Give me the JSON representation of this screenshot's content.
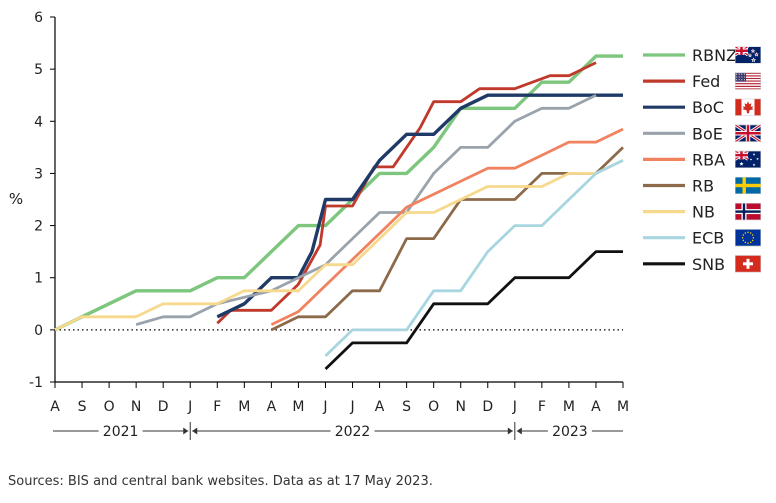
{
  "chart_data": {
    "type": "line",
    "ylabel": "%",
    "ylim": [
      -1,
      6
    ],
    "yticks": [
      "6",
      "5",
      "4",
      "3",
      "2",
      "1",
      "0",
      "-1"
    ],
    "ytick_values": [
      6,
      5,
      4,
      3,
      2,
      1,
      0,
      -1
    ],
    "months": [
      "A",
      "S",
      "O",
      "N",
      "D",
      "J",
      "F",
      "M",
      "A",
      "M",
      "J",
      "J",
      "A",
      "S",
      "O",
      "N",
      "D",
      "J",
      "F",
      "M",
      "A",
      "M"
    ],
    "years": [
      {
        "label": "2021",
        "from": 0,
        "to": 5
      },
      {
        "label": "2022",
        "from": 5,
        "to": 17
      },
      {
        "label": "2023",
        "from": 17,
        "to": 21
      }
    ],
    "series": [
      {
        "name": "RBNZ",
        "color": "#7dc67d",
        "width": 3.4,
        "points": [
          [
            0,
            0
          ],
          [
            1,
            0.25
          ],
          [
            3,
            0.75
          ],
          [
            5,
            0.75
          ],
          [
            6,
            1
          ],
          [
            7,
            1
          ],
          [
            9,
            2
          ],
          [
            10,
            2
          ],
          [
            11,
            2.5
          ],
          [
            12,
            3
          ],
          [
            13,
            3
          ],
          [
            14,
            3.5
          ],
          [
            15,
            4.25
          ],
          [
            16,
            4.25
          ],
          [
            17,
            4.25
          ],
          [
            18,
            4.75
          ],
          [
            19,
            4.75
          ],
          [
            20,
            5.25
          ],
          [
            21,
            5.25
          ]
        ]
      },
      {
        "name": "Fed",
        "color": "#c0392b",
        "width": 2.8,
        "points": [
          [
            6,
            0.125
          ],
          [
            6.5,
            0.375
          ],
          [
            8,
            0.375
          ],
          [
            9,
            0.875
          ],
          [
            9.8,
            1.625
          ],
          [
            10,
            2.375
          ],
          [
            11,
            2.375
          ],
          [
            11.8,
            3.125
          ],
          [
            12.5,
            3.125
          ],
          [
            13.5,
            3.875
          ],
          [
            14,
            4.375
          ],
          [
            15,
            4.375
          ],
          [
            15.7,
            4.625
          ],
          [
            17,
            4.625
          ],
          [
            18.3,
            4.875
          ],
          [
            19,
            4.875
          ],
          [
            20,
            5.125
          ]
        ]
      },
      {
        "name": "BoC",
        "color": "#1f3a66",
        "width": 3.4,
        "points": [
          [
            6,
            0.25
          ],
          [
            7,
            0.5
          ],
          [
            8,
            1
          ],
          [
            9,
            1
          ],
          [
            9.5,
            1.5
          ],
          [
            10,
            2.5
          ],
          [
            11,
            2.5
          ],
          [
            12,
            3.25
          ],
          [
            13,
            3.75
          ],
          [
            14,
            3.75
          ],
          [
            15,
            4.25
          ],
          [
            16,
            4.5
          ],
          [
            21,
            4.5
          ]
        ]
      },
      {
        "name": "BoE",
        "color": "#9aa3ab",
        "width": 2.8,
        "points": [
          [
            3,
            0.1
          ],
          [
            4,
            0.25
          ],
          [
            5,
            0.25
          ],
          [
            6,
            0.5
          ],
          [
            8,
            0.75
          ],
          [
            9,
            1
          ],
          [
            10,
            1.25
          ],
          [
            11,
            1.75
          ],
          [
            12,
            2.25
          ],
          [
            13,
            2.25
          ],
          [
            14,
            3
          ],
          [
            15,
            3.5
          ],
          [
            16,
            3.5
          ],
          [
            17,
            4
          ],
          [
            18,
            4.25
          ],
          [
            19,
            4.25
          ],
          [
            20,
            4.5
          ]
        ]
      },
      {
        "name": "RBA",
        "color": "#f08260",
        "width": 2.8,
        "points": [
          [
            8,
            0.1
          ],
          [
            9,
            0.35
          ],
          [
            10,
            0.85
          ],
          [
            11,
            1.35
          ],
          [
            12,
            1.85
          ],
          [
            13,
            2.35
          ],
          [
            14,
            2.6
          ],
          [
            15,
            2.85
          ],
          [
            16,
            3.1
          ],
          [
            17,
            3.1
          ],
          [
            18,
            3.35
          ],
          [
            19,
            3.6
          ],
          [
            20,
            3.6
          ],
          [
            21,
            3.85
          ]
        ]
      },
      {
        "name": "RB",
        "color": "#8c6a4a",
        "width": 2.8,
        "points": [
          [
            8,
            0
          ],
          [
            9,
            0.25
          ],
          [
            10,
            0.25
          ],
          [
            11,
            0.75
          ],
          [
            12,
            0.75
          ],
          [
            13,
            1.75
          ],
          [
            14,
            1.75
          ],
          [
            15,
            2.5
          ],
          [
            17,
            2.5
          ],
          [
            18,
            3
          ],
          [
            20,
            3
          ],
          [
            21,
            3.5
          ]
        ]
      },
      {
        "name": "NB",
        "color": "#f6d98d",
        "width": 2.8,
        "points": [
          [
            0,
            0
          ],
          [
            1,
            0.25
          ],
          [
            3,
            0.25
          ],
          [
            4,
            0.5
          ],
          [
            6,
            0.5
          ],
          [
            7,
            0.75
          ],
          [
            9,
            0.75
          ],
          [
            10,
            1.25
          ],
          [
            11,
            1.25
          ],
          [
            12,
            1.75
          ],
          [
            13,
            2.25
          ],
          [
            14,
            2.25
          ],
          [
            15,
            2.5
          ],
          [
            16,
            2.75
          ],
          [
            18,
            2.75
          ],
          [
            19,
            3
          ],
          [
            20,
            3
          ],
          [
            21,
            3.25
          ]
        ]
      },
      {
        "name": "ECB",
        "color": "#a8d6e0",
        "width": 2.8,
        "points": [
          [
            10,
            -0.5
          ],
          [
            11,
            0
          ],
          [
            12,
            0
          ],
          [
            13,
            0
          ],
          [
            14,
            0.75
          ],
          [
            15,
            0.75
          ],
          [
            16,
            1.5
          ],
          [
            17,
            2
          ],
          [
            18,
            2
          ],
          [
            19,
            2.5
          ],
          [
            20,
            3
          ],
          [
            21,
            3.25
          ]
        ]
      },
      {
        "name": "SNB",
        "color": "#111111",
        "width": 2.8,
        "points": [
          [
            10,
            -0.75
          ],
          [
            11,
            -0.25
          ],
          [
            13,
            -0.25
          ],
          [
            14,
            0.5
          ],
          [
            16,
            0.5
          ],
          [
            17,
            1
          ],
          [
            19,
            1
          ],
          [
            20,
            1.5
          ],
          [
            21,
            1.5
          ]
        ]
      }
    ],
    "legend": [
      {
        "name": "RBNZ",
        "flag": "new-zealand-flag-icon"
      },
      {
        "name": "Fed",
        "flag": "united-states-flag-icon"
      },
      {
        "name": "BoC",
        "flag": "canada-flag-icon"
      },
      {
        "name": "BoE",
        "flag": "united-kingdom-flag-icon"
      },
      {
        "name": "RBA",
        "flag": "australia-flag-icon"
      },
      {
        "name": "RB",
        "flag": "sweden-flag-icon"
      },
      {
        "name": "NB",
        "flag": "norway-flag-icon"
      },
      {
        "name": "ECB",
        "flag": "european-union-flag-icon"
      },
      {
        "name": "SNB",
        "flag": "switzerland-flag-icon"
      }
    ],
    "legend_position": "right"
  },
  "footer": {
    "source": "Sources: BIS and central bank websites. Data as at 17 May 2023."
  }
}
